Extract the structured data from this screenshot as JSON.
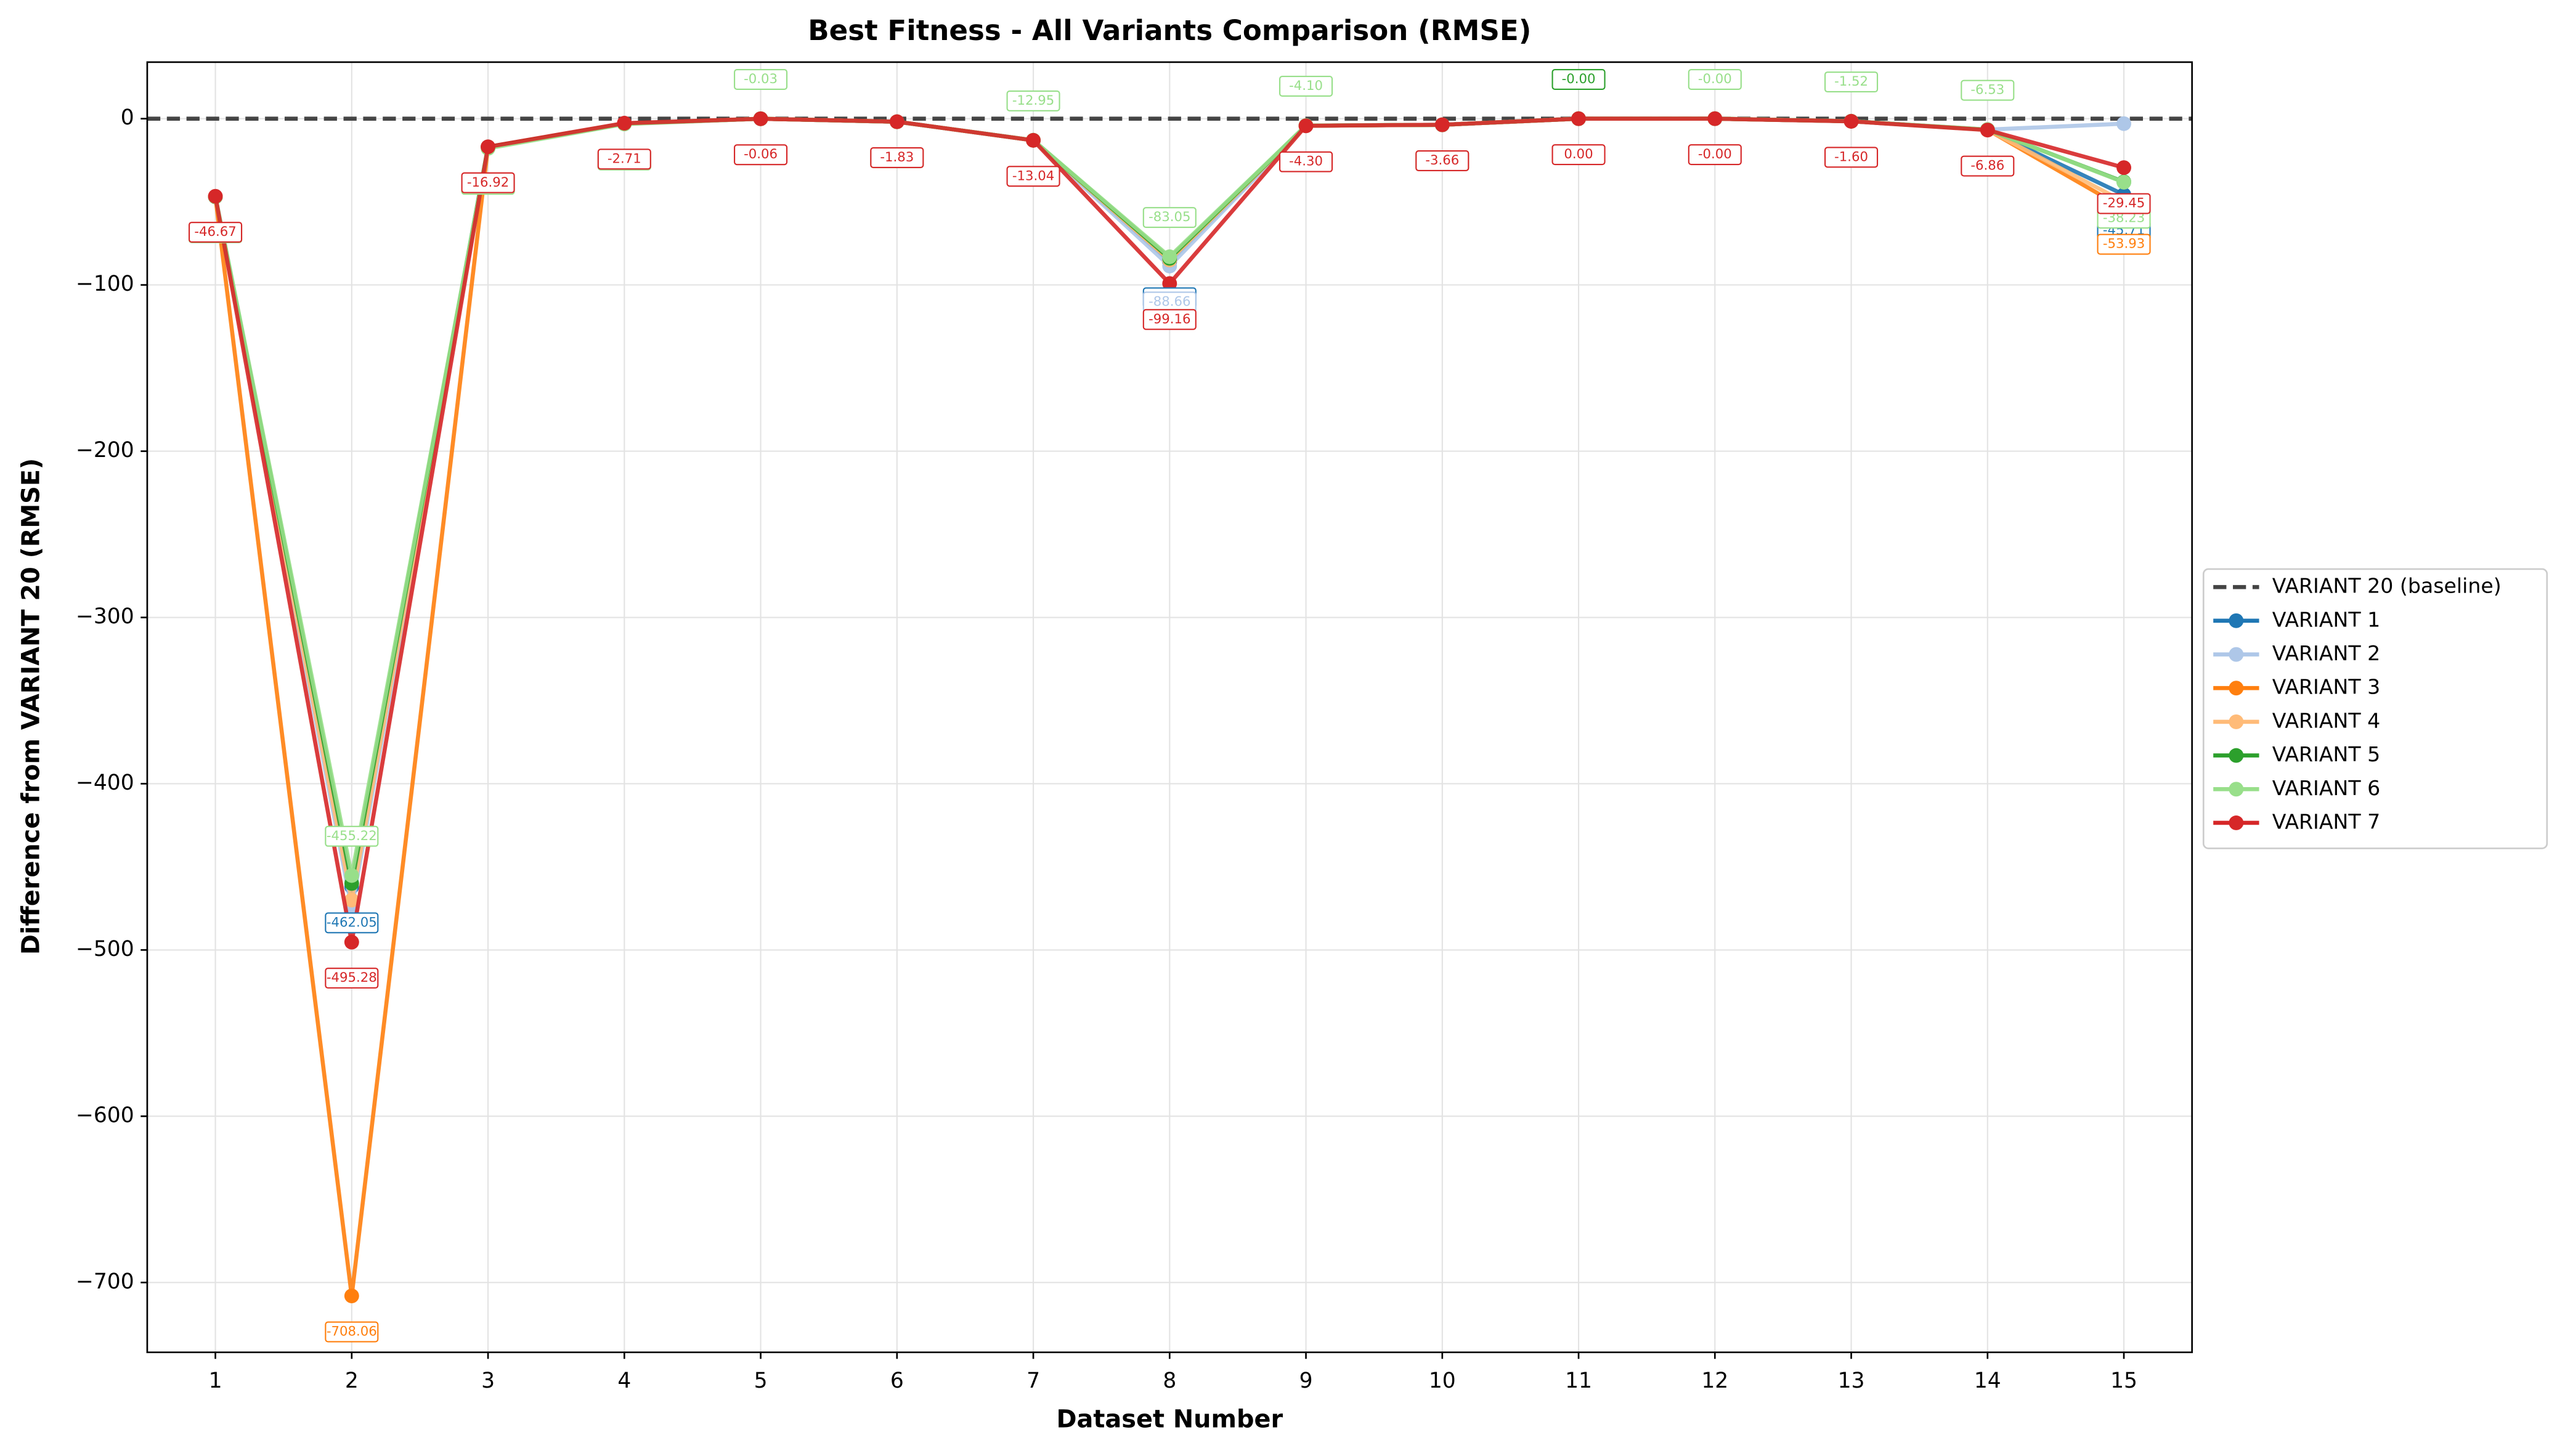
{
  "chart_data": {
    "type": "line",
    "title": "Best Fitness - All Variants Comparison (RMSE)",
    "x_label": "Dataset Number",
    "y_label": "Difference from VARIANT 20 (RMSE)",
    "x": [
      1,
      2,
      3,
      4,
      5,
      6,
      7,
      8,
      9,
      10,
      11,
      12,
      13,
      14,
      15
    ],
    "xlim": [
      0.5,
      15.5
    ],
    "xticks": [
      1,
      2,
      3,
      4,
      5,
      6,
      7,
      8,
      9,
      10,
      11,
      12,
      13,
      14,
      15
    ],
    "ylim": [
      -742,
      34
    ],
    "yticks": [
      {
        "value": -700,
        "label": "−700"
      },
      {
        "value": -600,
        "label": "−600"
      },
      {
        "value": -500,
        "label": "−500"
      },
      {
        "value": -400,
        "label": "−400"
      },
      {
        "value": -300,
        "label": "−300"
      },
      {
        "value": -200,
        "label": "−200"
      },
      {
        "value": -100,
        "label": "−100"
      },
      0
    ],
    "grid": true,
    "legend": "right",
    "baseline": {
      "name": "VARIANT 20 (baseline)",
      "value": 0,
      "color": "#444444"
    },
    "series": [
      {
        "name": "VARIANT 1",
        "color": "#1f77b4",
        "values": [
          -47,
          -462.05,
          -17,
          -3,
          -0.05,
          -1.85,
          -13,
          -86.11,
          -4.2,
          -3.7,
          0,
          0,
          -1.55,
          -6.7,
          -45.71
        ],
        "value_labels": [
          null,
          "-462.05",
          null,
          null,
          null,
          null,
          null,
          "-86.11",
          null,
          null,
          null,
          null,
          null,
          null,
          "-45.71"
        ]
      },
      {
        "name": "VARIANT 2",
        "color": "#aec7e8",
        "values": [
          -47,
          -475,
          -17,
          -3,
          -0.05,
          -1.85,
          -13,
          -88.66,
          -4.2,
          -3.7,
          0,
          0,
          -1.55,
          -6.6,
          -3
        ],
        "value_labels": [
          null,
          null,
          null,
          null,
          null,
          null,
          null,
          "-88.66",
          null,
          null,
          null,
          null,
          null,
          null,
          null
        ]
      },
      {
        "name": "VARIANT 3",
        "color": "#ff7f0e",
        "values": [
          -47,
          -708.06,
          -17,
          -3,
          -0.05,
          -1.85,
          -13,
          -85,
          -4.2,
          -3.7,
          0,
          0,
          -1.55,
          -6.7,
          -53.93
        ],
        "value_labels": [
          null,
          "-708.06",
          null,
          null,
          null,
          null,
          null,
          null,
          null,
          null,
          null,
          null,
          null,
          null,
          "-53.93"
        ]
      },
      {
        "name": "VARIANT 4",
        "color": "#ffbb78",
        "values": [
          -47,
          -470,
          -17,
          -3,
          -0.05,
          -1.85,
          -13,
          -85,
          -4.2,
          -3.7,
          0,
          0,
          -1.55,
          -6.7,
          -50
        ],
        "value_labels": [
          null,
          null,
          null,
          null,
          null,
          null,
          null,
          null,
          null,
          null,
          null,
          null,
          null,
          null,
          null
        ]
      },
      {
        "name": "VARIANT 5",
        "color": "#2ca02c",
        "values": [
          -47,
          -460,
          -17,
          -3,
          -0.05,
          -1.85,
          -13,
          -84,
          -4.2,
          -3.7,
          -0.0,
          0,
          -1.55,
          -6.6,
          -38
        ],
        "value_labels": [
          null,
          null,
          null,
          null,
          null,
          null,
          null,
          null,
          null,
          null,
          "-0.00",
          null,
          null,
          null,
          null
        ]
      },
      {
        "name": "VARIANT 6",
        "color": "#98df8a",
        "values": [
          -46.97,
          -455.22,
          -17.86,
          -3.22,
          -0.03,
          -1.86,
          -12.95,
          -83.05,
          -4.1,
          -3.68,
          0,
          -0.0,
          -1.52,
          -6.53,
          -38.23
        ],
        "value_labels": [
          "-46.97",
          "-455.22",
          "-17.86",
          "-3.22",
          "-0.03",
          "-1.86",
          "-12.95",
          "-83.05",
          "-4.10",
          "-3.68",
          null,
          "-0.00",
          "-1.52",
          "-6.53",
          "-38.23"
        ]
      },
      {
        "name": "VARIANT 7",
        "color": "#d62728",
        "values": [
          -46.67,
          -495.28,
          -16.92,
          -2.71,
          -0.06,
          -1.83,
          -13.04,
          -99.16,
          -4.3,
          -3.66,
          0.0,
          -0.0,
          -1.6,
          -6.86,
          -29.45
        ],
        "value_labels": [
          "-46.67",
          "-495.28",
          "-16.92",
          "-2.71",
          "-0.06",
          "-1.83",
          "-13.04",
          "-99.16",
          "-4.30",
          "-3.66",
          "0.00",
          "-0.00",
          "-1.60",
          "-6.86",
          "-29.45"
        ]
      }
    ]
  }
}
